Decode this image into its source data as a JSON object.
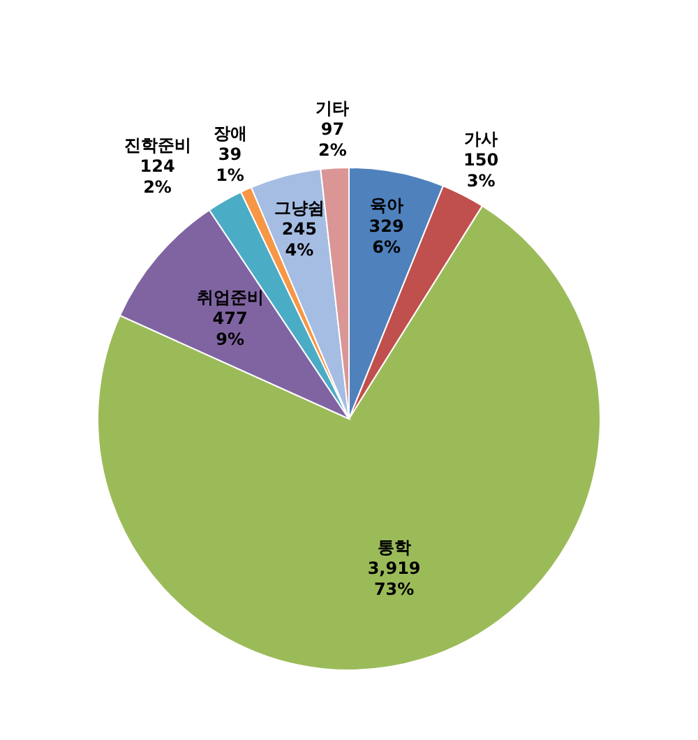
{
  "chart_data": {
    "type": "pie",
    "categories": [
      "육아",
      "가사",
      "통학",
      "취업준비",
      "진학준비",
      "장애",
      "그냥쉼",
      "기타"
    ],
    "values": [
      329,
      150,
      3919,
      477,
      124,
      39,
      245,
      97
    ],
    "colors": [
      "#4f81bd",
      "#c0504d",
      "#9bbb59",
      "#8064a2",
      "#4bacc6",
      "#f79646",
      "#a5bde3",
      "#d99694"
    ],
    "value_labels": [
      "329\n6%",
      "150\n3%",
      "3,919\n73%",
      "477\n9%",
      "124\n2%",
      "39\n1%",
      "245\n4%",
      "97\n2%"
    ]
  }
}
